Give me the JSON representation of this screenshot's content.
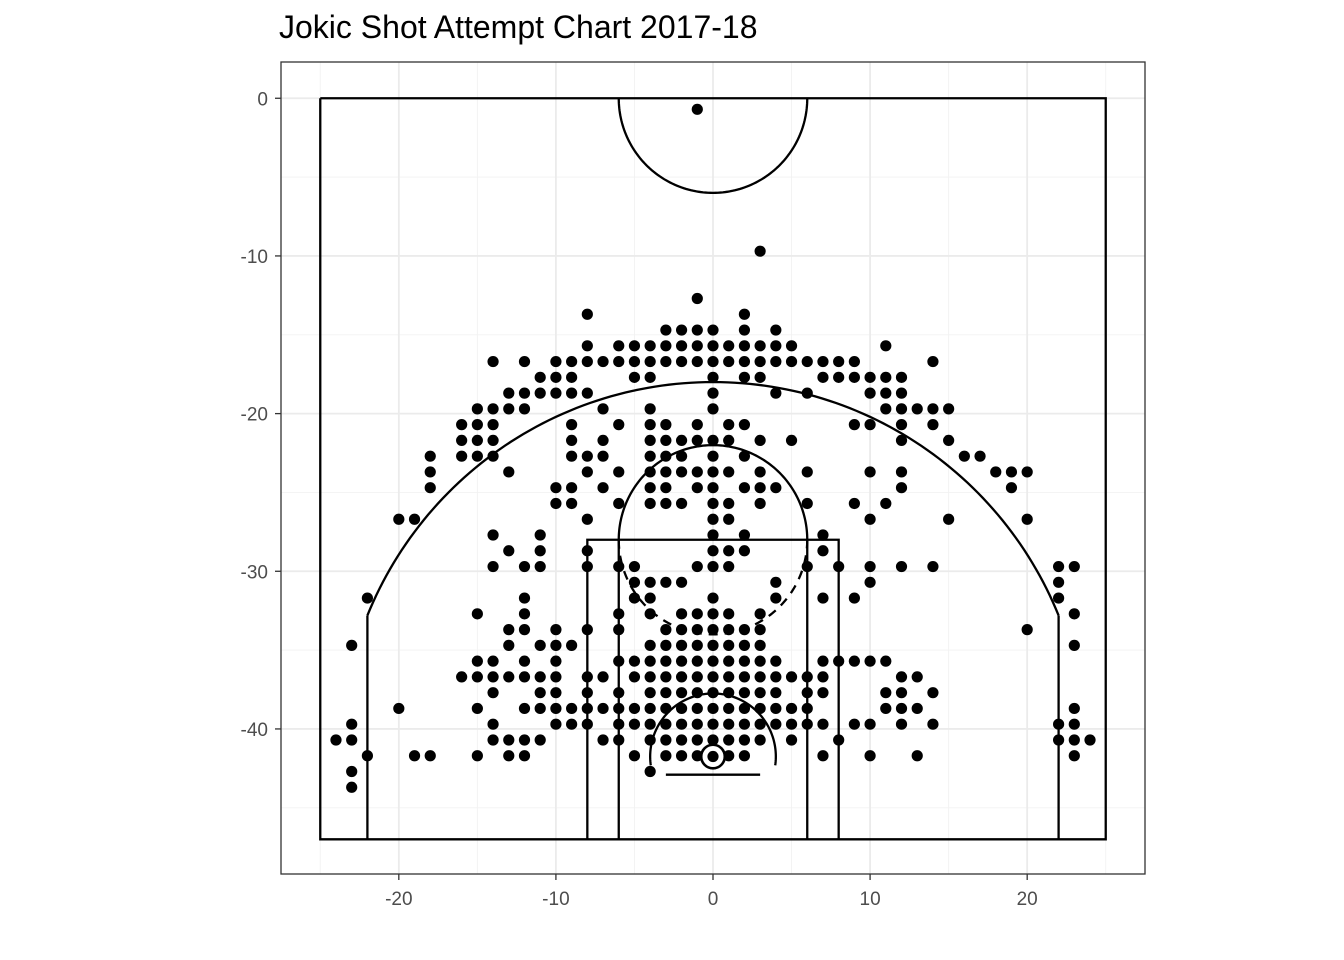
{
  "chart_data": {
    "type": "scatter",
    "title": "Jokic Shot Attempt Chart 2017-18",
    "xlabel": "",
    "ylabel": "",
    "xlim": [
      -27.5,
      27.5
    ],
    "ylim": [
      -49.2,
      2.3
    ],
    "x_ticks": [
      -20,
      -10,
      0,
      10,
      20
    ],
    "x_tick_labels": [
      "-20",
      "-10",
      "0",
      "10",
      "20"
    ],
    "y_ticks": [
      0,
      -10,
      -20,
      -30,
      -40
    ],
    "y_tick_labels": [
      "0",
      "-10",
      "-20",
      "-30",
      "-40"
    ],
    "grid": true,
    "theme": "black-and-white",
    "point_color": "#000000",
    "court_color": "#000000",
    "points": [
      [
        -1,
        -0.7
      ],
      [
        3,
        -9.7
      ],
      [
        -1,
        -12.7
      ],
      [
        -8,
        -13.7
      ],
      [
        2,
        -13.7
      ],
      [
        -3,
        -14.7
      ],
      [
        -2,
        -14.7
      ],
      [
        -1,
        -14.7
      ],
      [
        0,
        -14.7
      ],
      [
        2,
        -14.7
      ],
      [
        4,
        -14.7
      ],
      [
        -8,
        -15.7
      ],
      [
        -6,
        -15.7
      ],
      [
        -5,
        -15.7
      ],
      [
        -4,
        -15.7
      ],
      [
        -3,
        -15.7
      ],
      [
        -2,
        -15.7
      ],
      [
        -1,
        -15.7
      ],
      [
        0,
        -15.7
      ],
      [
        1,
        -15.7
      ],
      [
        2,
        -15.7
      ],
      [
        3,
        -15.7
      ],
      [
        4,
        -15.7
      ],
      [
        5,
        -15.7
      ],
      [
        11,
        -15.7
      ],
      [
        -14,
        -16.7
      ],
      [
        -12,
        -16.7
      ],
      [
        -10,
        -16.7
      ],
      [
        -9,
        -16.7
      ],
      [
        -8,
        -16.7
      ],
      [
        -7,
        -16.7
      ],
      [
        -6,
        -16.7
      ],
      [
        -5,
        -16.7
      ],
      [
        -4,
        -16.7
      ],
      [
        -3,
        -16.7
      ],
      [
        -2,
        -16.7
      ],
      [
        -1,
        -16.7
      ],
      [
        0,
        -16.7
      ],
      [
        1,
        -16.7
      ],
      [
        2,
        -16.7
      ],
      [
        3,
        -16.7
      ],
      [
        4,
        -16.7
      ],
      [
        5,
        -16.7
      ],
      [
        6,
        -16.7
      ],
      [
        7,
        -16.7
      ],
      [
        8,
        -16.7
      ],
      [
        9,
        -16.7
      ],
      [
        14,
        -16.7
      ],
      [
        -11,
        -17.7
      ],
      [
        -10,
        -17.7
      ],
      [
        -9,
        -17.7
      ],
      [
        -5,
        -17.7
      ],
      [
        -4,
        -17.7
      ],
      [
        0,
        -17.7
      ],
      [
        2,
        -17.7
      ],
      [
        3,
        -17.7
      ],
      [
        7,
        -17.7
      ],
      [
        8,
        -17.7
      ],
      [
        9,
        -17.7
      ],
      [
        10,
        -17.7
      ],
      [
        11,
        -17.7
      ],
      [
        12,
        -17.7
      ],
      [
        -13,
        -18.7
      ],
      [
        -12,
        -18.7
      ],
      [
        -11,
        -18.7
      ],
      [
        -10,
        -18.7
      ],
      [
        -9,
        -18.7
      ],
      [
        -8,
        -18.7
      ],
      [
        0,
        -18.7
      ],
      [
        4,
        -18.7
      ],
      [
        6,
        -18.7
      ],
      [
        10,
        -18.7
      ],
      [
        11,
        -18.7
      ],
      [
        12,
        -18.7
      ],
      [
        -15,
        -19.7
      ],
      [
        -14,
        -19.7
      ],
      [
        -13,
        -19.7
      ],
      [
        -12,
        -19.7
      ],
      [
        -7,
        -19.7
      ],
      [
        -4,
        -19.7
      ],
      [
        0,
        -19.7
      ],
      [
        11,
        -19.7
      ],
      [
        12,
        -19.7
      ],
      [
        13,
        -19.7
      ],
      [
        14,
        -19.7
      ],
      [
        15,
        -19.7
      ],
      [
        -16,
        -20.7
      ],
      [
        -15,
        -20.7
      ],
      [
        -14,
        -20.7
      ],
      [
        -9,
        -20.7
      ],
      [
        -6,
        -20.7
      ],
      [
        -4,
        -20.7
      ],
      [
        -3,
        -20.7
      ],
      [
        -1,
        -20.7
      ],
      [
        1,
        -20.7
      ],
      [
        2,
        -20.7
      ],
      [
        9,
        -20.7
      ],
      [
        10,
        -20.7
      ],
      [
        12,
        -20.7
      ],
      [
        14,
        -20.7
      ],
      [
        -16,
        -21.7
      ],
      [
        -15,
        -21.7
      ],
      [
        -14,
        -21.7
      ],
      [
        -9,
        -21.7
      ],
      [
        -7,
        -21.7
      ],
      [
        -4,
        -21.7
      ],
      [
        -3,
        -21.7
      ],
      [
        -2,
        -21.7
      ],
      [
        -1,
        -21.7
      ],
      [
        0,
        -21.7
      ],
      [
        1,
        -21.7
      ],
      [
        3,
        -21.7
      ],
      [
        5,
        -21.7
      ],
      [
        12,
        -21.7
      ],
      [
        15,
        -21.7
      ],
      [
        -18,
        -22.7
      ],
      [
        -16,
        -22.7
      ],
      [
        -15,
        -22.7
      ],
      [
        -14,
        -22.7
      ],
      [
        -9,
        -22.7
      ],
      [
        -8,
        -22.7
      ],
      [
        -7,
        -22.7
      ],
      [
        -4,
        -22.7
      ],
      [
        -3,
        -22.7
      ],
      [
        -2,
        -22.7
      ],
      [
        0,
        -22.7
      ],
      [
        2,
        -22.7
      ],
      [
        16,
        -22.7
      ],
      [
        17,
        -22.7
      ],
      [
        -18,
        -23.7
      ],
      [
        -13,
        -23.7
      ],
      [
        -8,
        -23.7
      ],
      [
        -6,
        -23.7
      ],
      [
        -4,
        -23.7
      ],
      [
        -3,
        -23.7
      ],
      [
        -2,
        -23.7
      ],
      [
        -1,
        -23.7
      ],
      [
        0,
        -23.7
      ],
      [
        1,
        -23.7
      ],
      [
        3,
        -23.7
      ],
      [
        6,
        -23.7
      ],
      [
        10,
        -23.7
      ],
      [
        12,
        -23.7
      ],
      [
        18,
        -23.7
      ],
      [
        19,
        -23.7
      ],
      [
        20,
        -23.7
      ],
      [
        -18,
        -24.7
      ],
      [
        -10,
        -24.7
      ],
      [
        -9,
        -24.7
      ],
      [
        -7,
        -24.7
      ],
      [
        -4,
        -24.7
      ],
      [
        -3,
        -24.7
      ],
      [
        -1,
        -24.7
      ],
      [
        0,
        -24.7
      ],
      [
        2,
        -24.7
      ],
      [
        3,
        -24.7
      ],
      [
        4,
        -24.7
      ],
      [
        12,
        -24.7
      ],
      [
        19,
        -24.7
      ],
      [
        -10,
        -25.7
      ],
      [
        -9,
        -25.7
      ],
      [
        -6,
        -25.7
      ],
      [
        -4,
        -25.7
      ],
      [
        -3,
        -25.7
      ],
      [
        -2,
        -25.7
      ],
      [
        0,
        -25.7
      ],
      [
        1,
        -25.7
      ],
      [
        3,
        -25.7
      ],
      [
        6,
        -25.7
      ],
      [
        9,
        -25.7
      ],
      [
        11,
        -25.7
      ],
      [
        -20,
        -26.7
      ],
      [
        -19,
        -26.7
      ],
      [
        -8,
        -26.7
      ],
      [
        0,
        -26.7
      ],
      [
        1,
        -26.7
      ],
      [
        10,
        -26.7
      ],
      [
        15,
        -26.7
      ],
      [
        20,
        -26.7
      ],
      [
        -14,
        -27.7
      ],
      [
        -11,
        -27.7
      ],
      [
        0,
        -27.7
      ],
      [
        2,
        -27.7
      ],
      [
        7,
        -27.7
      ],
      [
        -13,
        -28.7
      ],
      [
        -11,
        -28.7
      ],
      [
        -8,
        -28.7
      ],
      [
        0,
        -28.7
      ],
      [
        1,
        -28.7
      ],
      [
        2,
        -28.7
      ],
      [
        7,
        -28.7
      ],
      [
        -14,
        -29.7
      ],
      [
        -12,
        -29.7
      ],
      [
        -11,
        -29.7
      ],
      [
        -8,
        -29.7
      ],
      [
        -6,
        -29.7
      ],
      [
        -5,
        -29.7
      ],
      [
        -1,
        -29.7
      ],
      [
        0,
        -29.7
      ],
      [
        1,
        -29.7
      ],
      [
        6,
        -29.7
      ],
      [
        8,
        -29.7
      ],
      [
        10,
        -29.7
      ],
      [
        12,
        -29.7
      ],
      [
        14,
        -29.7
      ],
      [
        22,
        -29.7
      ],
      [
        23,
        -29.7
      ],
      [
        -5,
        -30.7
      ],
      [
        -4,
        -30.7
      ],
      [
        -3,
        -30.7
      ],
      [
        -2,
        -30.7
      ],
      [
        4,
        -30.7
      ],
      [
        10,
        -30.7
      ],
      [
        22,
        -30.7
      ],
      [
        -22,
        -31.7
      ],
      [
        -12,
        -31.7
      ],
      [
        -5,
        -31.7
      ],
      [
        -4,
        -31.7
      ],
      [
        0,
        -31.7
      ],
      [
        4,
        -31.7
      ],
      [
        7,
        -31.7
      ],
      [
        9,
        -31.7
      ],
      [
        22,
        -31.7
      ],
      [
        -15,
        -32.7
      ],
      [
        -12,
        -32.7
      ],
      [
        -6,
        -32.7
      ],
      [
        -4,
        -32.7
      ],
      [
        -2,
        -32.7
      ],
      [
        -1,
        -32.7
      ],
      [
        0,
        -32.7
      ],
      [
        1,
        -32.7
      ],
      [
        3,
        -32.7
      ],
      [
        23,
        -32.7
      ],
      [
        -13,
        -33.7
      ],
      [
        -12,
        -33.7
      ],
      [
        -10,
        -33.7
      ],
      [
        -8,
        -33.7
      ],
      [
        -6,
        -33.7
      ],
      [
        -3,
        -33.7
      ],
      [
        -2,
        -33.7
      ],
      [
        -1,
        -33.7
      ],
      [
        0,
        -33.7
      ],
      [
        1,
        -33.7
      ],
      [
        2,
        -33.7
      ],
      [
        3,
        -33.7
      ],
      [
        20,
        -33.7
      ],
      [
        -23,
        -34.7
      ],
      [
        -13,
        -34.7
      ],
      [
        -11,
        -34.7
      ],
      [
        -10,
        -34.7
      ],
      [
        -9,
        -34.7
      ],
      [
        -4,
        -34.7
      ],
      [
        -3,
        -34.7
      ],
      [
        -2,
        -34.7
      ],
      [
        -1,
        -34.7
      ],
      [
        0,
        -34.7
      ],
      [
        1,
        -34.7
      ],
      [
        2,
        -34.7
      ],
      [
        3,
        -34.7
      ],
      [
        23,
        -34.7
      ],
      [
        -15,
        -35.7
      ],
      [
        -14,
        -35.7
      ],
      [
        -12,
        -35.7
      ],
      [
        -10,
        -35.7
      ],
      [
        -6,
        -35.7
      ],
      [
        -5,
        -35.7
      ],
      [
        -4,
        -35.7
      ],
      [
        -3,
        -35.7
      ],
      [
        -2,
        -35.7
      ],
      [
        -1,
        -35.7
      ],
      [
        0,
        -35.7
      ],
      [
        1,
        -35.7
      ],
      [
        2,
        -35.7
      ],
      [
        3,
        -35.7
      ],
      [
        4,
        -35.7
      ],
      [
        7,
        -35.7
      ],
      [
        8,
        -35.7
      ],
      [
        9,
        -35.7
      ],
      [
        10,
        -35.7
      ],
      [
        11,
        -35.7
      ],
      [
        -16,
        -36.7
      ],
      [
        -15,
        -36.7
      ],
      [
        -14,
        -36.7
      ],
      [
        -13,
        -36.7
      ],
      [
        -12,
        -36.7
      ],
      [
        -11,
        -36.7
      ],
      [
        -10,
        -36.7
      ],
      [
        -8,
        -36.7
      ],
      [
        -7,
        -36.7
      ],
      [
        -5,
        -36.7
      ],
      [
        -4,
        -36.7
      ],
      [
        -3,
        -36.7
      ],
      [
        -2,
        -36.7
      ],
      [
        -1,
        -36.7
      ],
      [
        0,
        -36.7
      ],
      [
        1,
        -36.7
      ],
      [
        2,
        -36.7
      ],
      [
        3,
        -36.7
      ],
      [
        4,
        -36.7
      ],
      [
        5,
        -36.7
      ],
      [
        6,
        -36.7
      ],
      [
        7,
        -36.7
      ],
      [
        12,
        -36.7
      ],
      [
        13,
        -36.7
      ],
      [
        -14,
        -37.7
      ],
      [
        -11,
        -37.7
      ],
      [
        -10,
        -37.7
      ],
      [
        -8,
        -37.7
      ],
      [
        -6,
        -37.7
      ],
      [
        -4,
        -37.7
      ],
      [
        -3,
        -37.7
      ],
      [
        -2,
        -37.7
      ],
      [
        -1,
        -37.7
      ],
      [
        0,
        -37.7
      ],
      [
        1,
        -37.7
      ],
      [
        2,
        -37.7
      ],
      [
        3,
        -37.7
      ],
      [
        4,
        -37.7
      ],
      [
        6,
        -37.7
      ],
      [
        7,
        -37.7
      ],
      [
        11,
        -37.7
      ],
      [
        12,
        -37.7
      ],
      [
        14,
        -37.7
      ],
      [
        -20,
        -38.7
      ],
      [
        -15,
        -38.7
      ],
      [
        -12,
        -38.7
      ],
      [
        -11,
        -38.7
      ],
      [
        -10,
        -38.7
      ],
      [
        -9,
        -38.7
      ],
      [
        -8,
        -38.7
      ],
      [
        -7,
        -38.7
      ],
      [
        -6,
        -38.7
      ],
      [
        -5,
        -38.7
      ],
      [
        -4,
        -38.7
      ],
      [
        -3,
        -38.7
      ],
      [
        -2,
        -38.7
      ],
      [
        -1,
        -38.7
      ],
      [
        0,
        -38.7
      ],
      [
        1,
        -38.7
      ],
      [
        2,
        -38.7
      ],
      [
        3,
        -38.7
      ],
      [
        4,
        -38.7
      ],
      [
        5,
        -38.7
      ],
      [
        6,
        -38.7
      ],
      [
        11,
        -38.7
      ],
      [
        12,
        -38.7
      ],
      [
        13,
        -38.7
      ],
      [
        23,
        -38.7
      ],
      [
        -23,
        -39.7
      ],
      [
        -14,
        -39.7
      ],
      [
        -10,
        -39.7
      ],
      [
        -9,
        -39.7
      ],
      [
        -8,
        -39.7
      ],
      [
        -6,
        -39.7
      ],
      [
        -5,
        -39.7
      ],
      [
        -4,
        -39.7
      ],
      [
        -3,
        -39.7
      ],
      [
        -2,
        -39.7
      ],
      [
        -1,
        -39.7
      ],
      [
        0,
        -39.7
      ],
      [
        1,
        -39.7
      ],
      [
        2,
        -39.7
      ],
      [
        3,
        -39.7
      ],
      [
        4,
        -39.7
      ],
      [
        5,
        -39.7
      ],
      [
        6,
        -39.7
      ],
      [
        7,
        -39.7
      ],
      [
        9,
        -39.7
      ],
      [
        10,
        -39.7
      ],
      [
        12,
        -39.7
      ],
      [
        14,
        -39.7
      ],
      [
        22,
        -39.7
      ],
      [
        23,
        -39.7
      ],
      [
        -24,
        -40.7
      ],
      [
        -23,
        -40.7
      ],
      [
        -14,
        -40.7
      ],
      [
        -13,
        -40.7
      ],
      [
        -12,
        -40.7
      ],
      [
        -11,
        -40.7
      ],
      [
        -7,
        -40.7
      ],
      [
        -6,
        -40.7
      ],
      [
        -4,
        -40.7
      ],
      [
        -3,
        -40.7
      ],
      [
        -2,
        -40.7
      ],
      [
        -1,
        -40.7
      ],
      [
        0,
        -40.7
      ],
      [
        1,
        -40.7
      ],
      [
        2,
        -40.7
      ],
      [
        3,
        -40.7
      ],
      [
        5,
        -40.7
      ],
      [
        8,
        -40.7
      ],
      [
        22,
        -40.7
      ],
      [
        23,
        -40.7
      ],
      [
        24,
        -40.7
      ],
      [
        -22,
        -41.7
      ],
      [
        -19,
        -41.7
      ],
      [
        -18,
        -41.7
      ],
      [
        -15,
        -41.7
      ],
      [
        -13,
        -41.7
      ],
      [
        -12,
        -41.7
      ],
      [
        -5,
        -41.7
      ],
      [
        -3,
        -41.7
      ],
      [
        -2,
        -41.7
      ],
      [
        -1,
        -41.7
      ],
      [
        0,
        -41.7
      ],
      [
        1,
        -41.7
      ],
      [
        2,
        -41.7
      ],
      [
        7,
        -41.7
      ],
      [
        10,
        -41.7
      ],
      [
        13,
        -41.7
      ],
      [
        23,
        -41.7
      ],
      [
        -23,
        -42.7
      ],
      [
        -4,
        -42.7
      ],
      [
        -23,
        -43.7
      ]
    ]
  }
}
